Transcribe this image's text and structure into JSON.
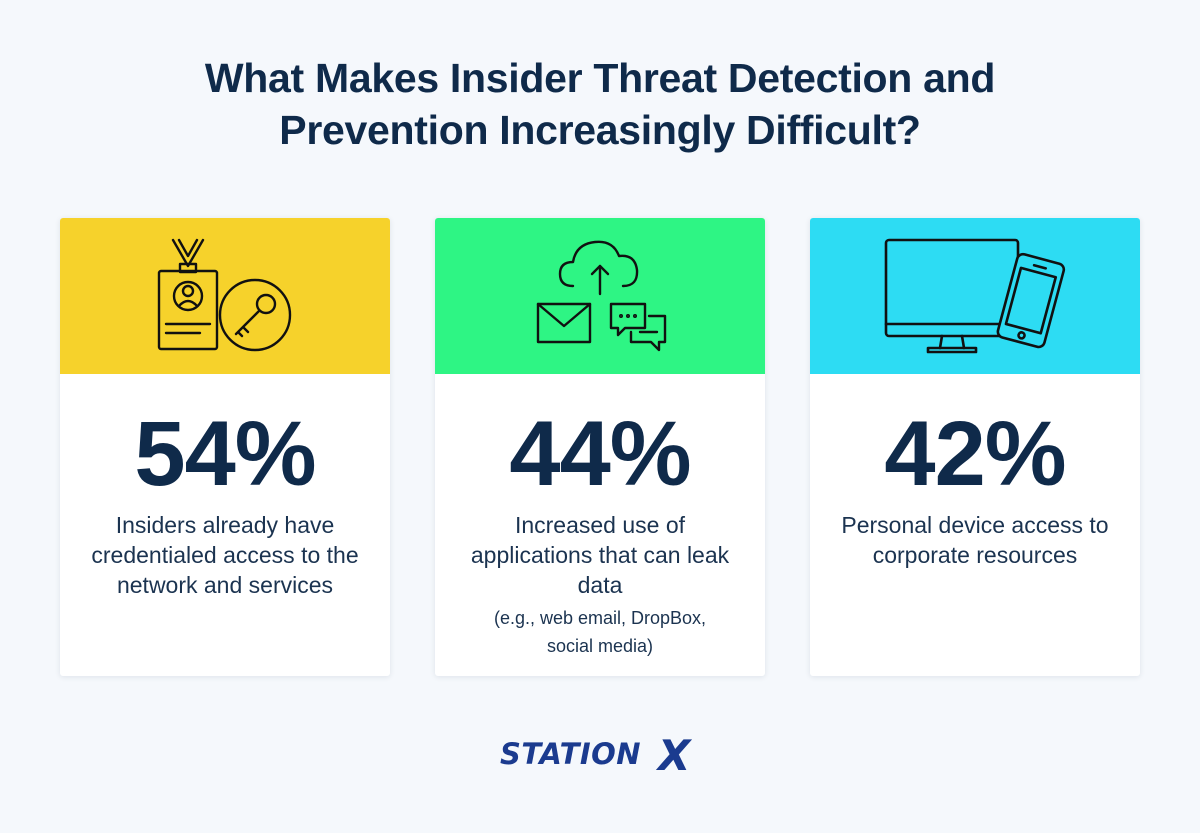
{
  "title": {
    "line1": "What Makes Insider Threat Detection and",
    "line2": "Prevention Increasingly Difficult?"
  },
  "cards": [
    {
      "color": "#f6d22b",
      "icon": "id-badge-key-icon",
      "percent": "54%",
      "description": "Insiders already have credentialed access to the network and services",
      "note": ""
    },
    {
      "color": "#2ef584",
      "icon": "cloud-upload-mail-chat-icon",
      "percent": "44%",
      "description": "Increased use of applications that can leak data",
      "note": "(e.g., web email, DropBox, social media)"
    },
    {
      "color": "#2ddcf3",
      "icon": "monitor-phone-icon",
      "percent": "42%",
      "description": "Personal device access to corporate resources",
      "note": ""
    }
  ],
  "logo": {
    "word": "STATION",
    "mark": "X",
    "color": "#1b3b8f"
  }
}
